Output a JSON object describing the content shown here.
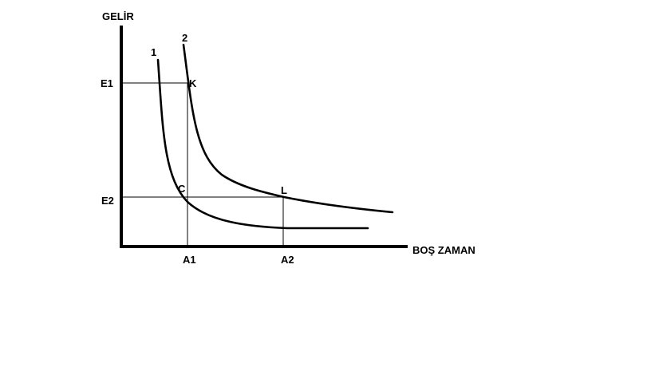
{
  "axes": {
    "y_label": "GELİR",
    "x_label": "BOŞ ZAMAN"
  },
  "curves": {
    "curve_1_label": "1",
    "curve_2_label": "2"
  },
  "y_ticks": {
    "e1": "E1",
    "e2": "E2"
  },
  "x_ticks": {
    "a1": "A1",
    "a2": "A2"
  },
  "points": {
    "k": "K",
    "c": "C",
    "l": "L"
  },
  "colors": {
    "line": "#000000",
    "background": "#ffffff"
  }
}
